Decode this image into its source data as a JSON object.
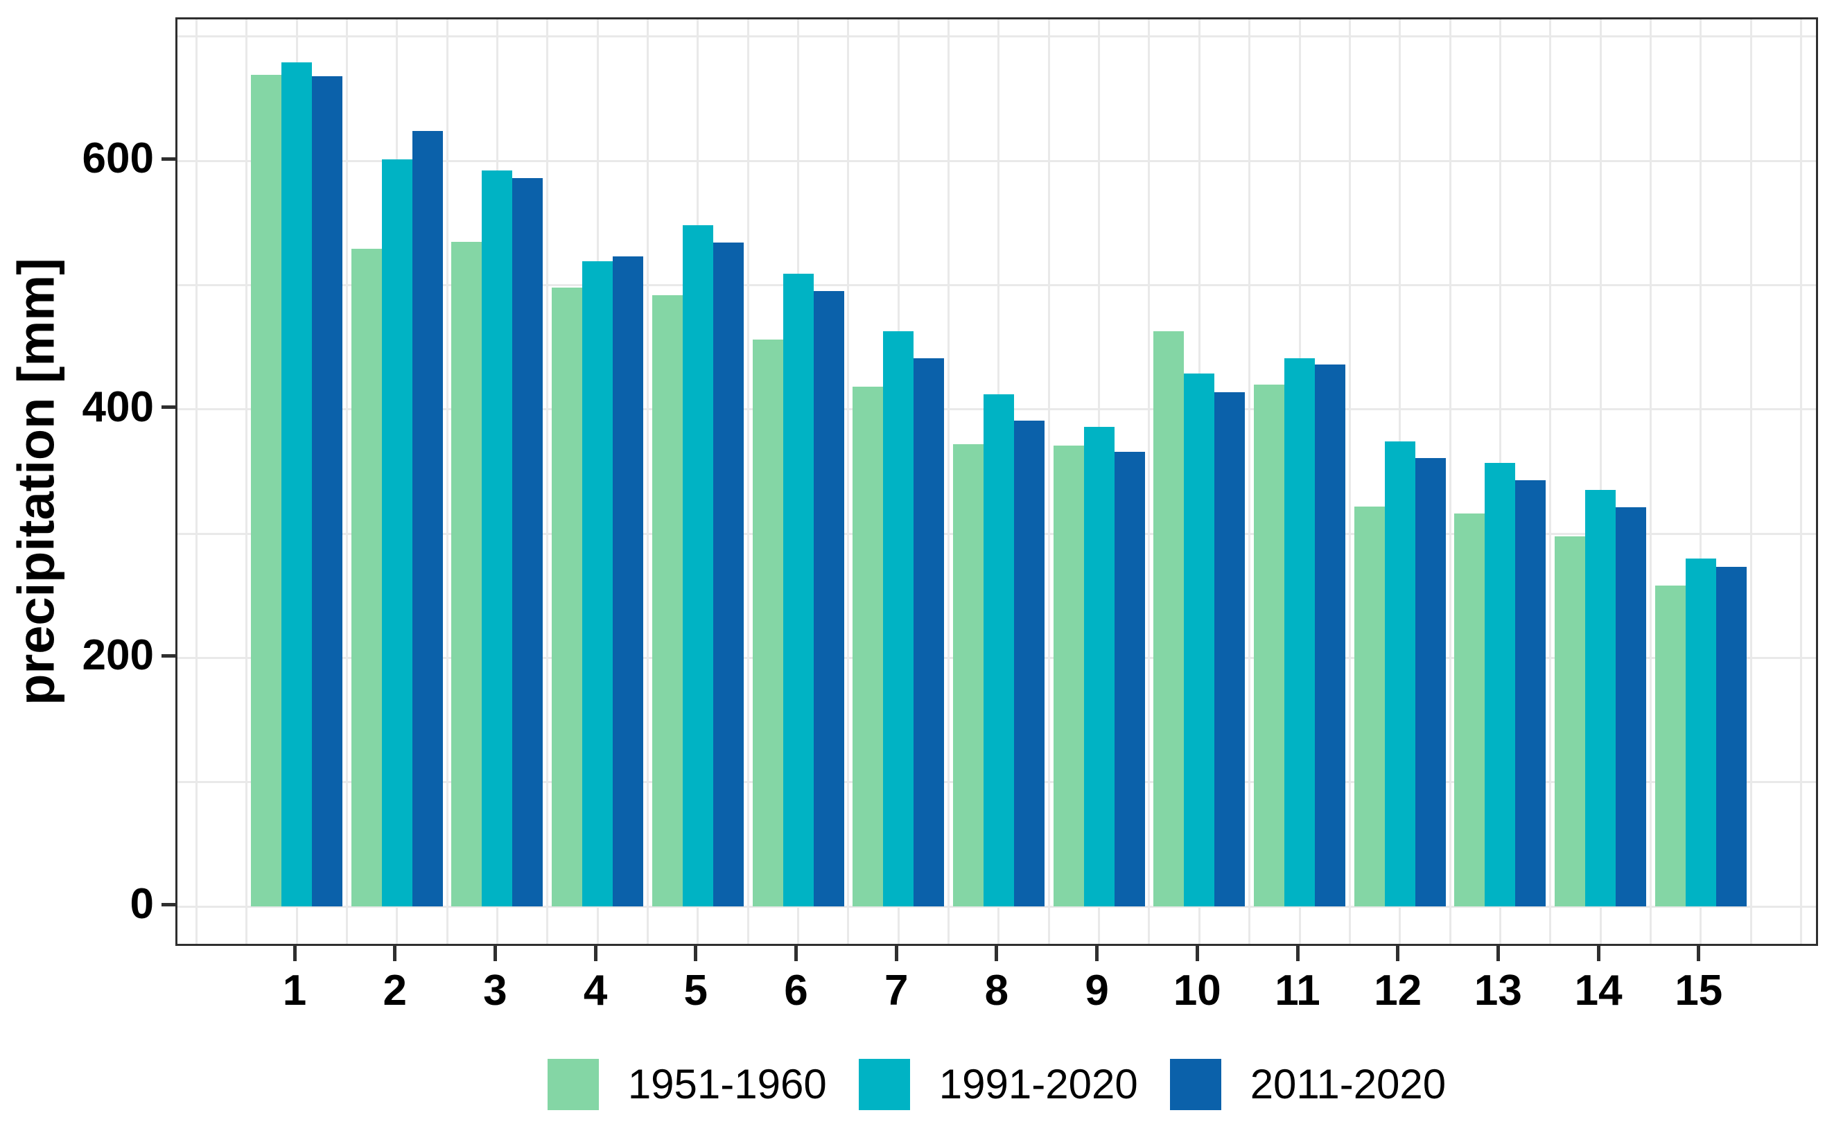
{
  "chart_data": {
    "type": "bar",
    "title": "",
    "xlabel": "",
    "ylabel": "precipitation [mm]",
    "categories": [
      "1",
      "2",
      "3",
      "4",
      "5",
      "6",
      "7",
      "8",
      "9",
      "10",
      "11",
      "12",
      "13",
      "14",
      "15"
    ],
    "series": [
      {
        "name": "1951-1960",
        "color": "#84D6A5",
        "values": [
          669,
          529,
          535,
          498,
          492,
          456,
          418,
          372,
          371,
          463,
          420,
          322,
          316,
          298,
          258
        ]
      },
      {
        "name": "1991-2020",
        "color": "#00B3C4",
        "values": [
          679,
          601,
          592,
          519,
          548,
          509,
          463,
          412,
          386,
          429,
          441,
          374,
          357,
          335,
          280
        ]
      },
      {
        "name": "2011-2020",
        "color": "#0B61AA",
        "values": [
          668,
          624,
          586,
          523,
          534,
          495,
          441,
          391,
          366,
          414,
          436,
          361,
          343,
          321,
          273
        ]
      }
    ],
    "ylim": [
      0,
      700
    ],
    "yticks": [
      0,
      200,
      400,
      600
    ],
    "y_minor_step": 100,
    "grid": "on",
    "legend_position": "bottom"
  },
  "colors": {
    "background": "#FFFFFF",
    "gridline": "#E9E9E9",
    "axis": "#2F2F2F",
    "text": "#000000"
  }
}
